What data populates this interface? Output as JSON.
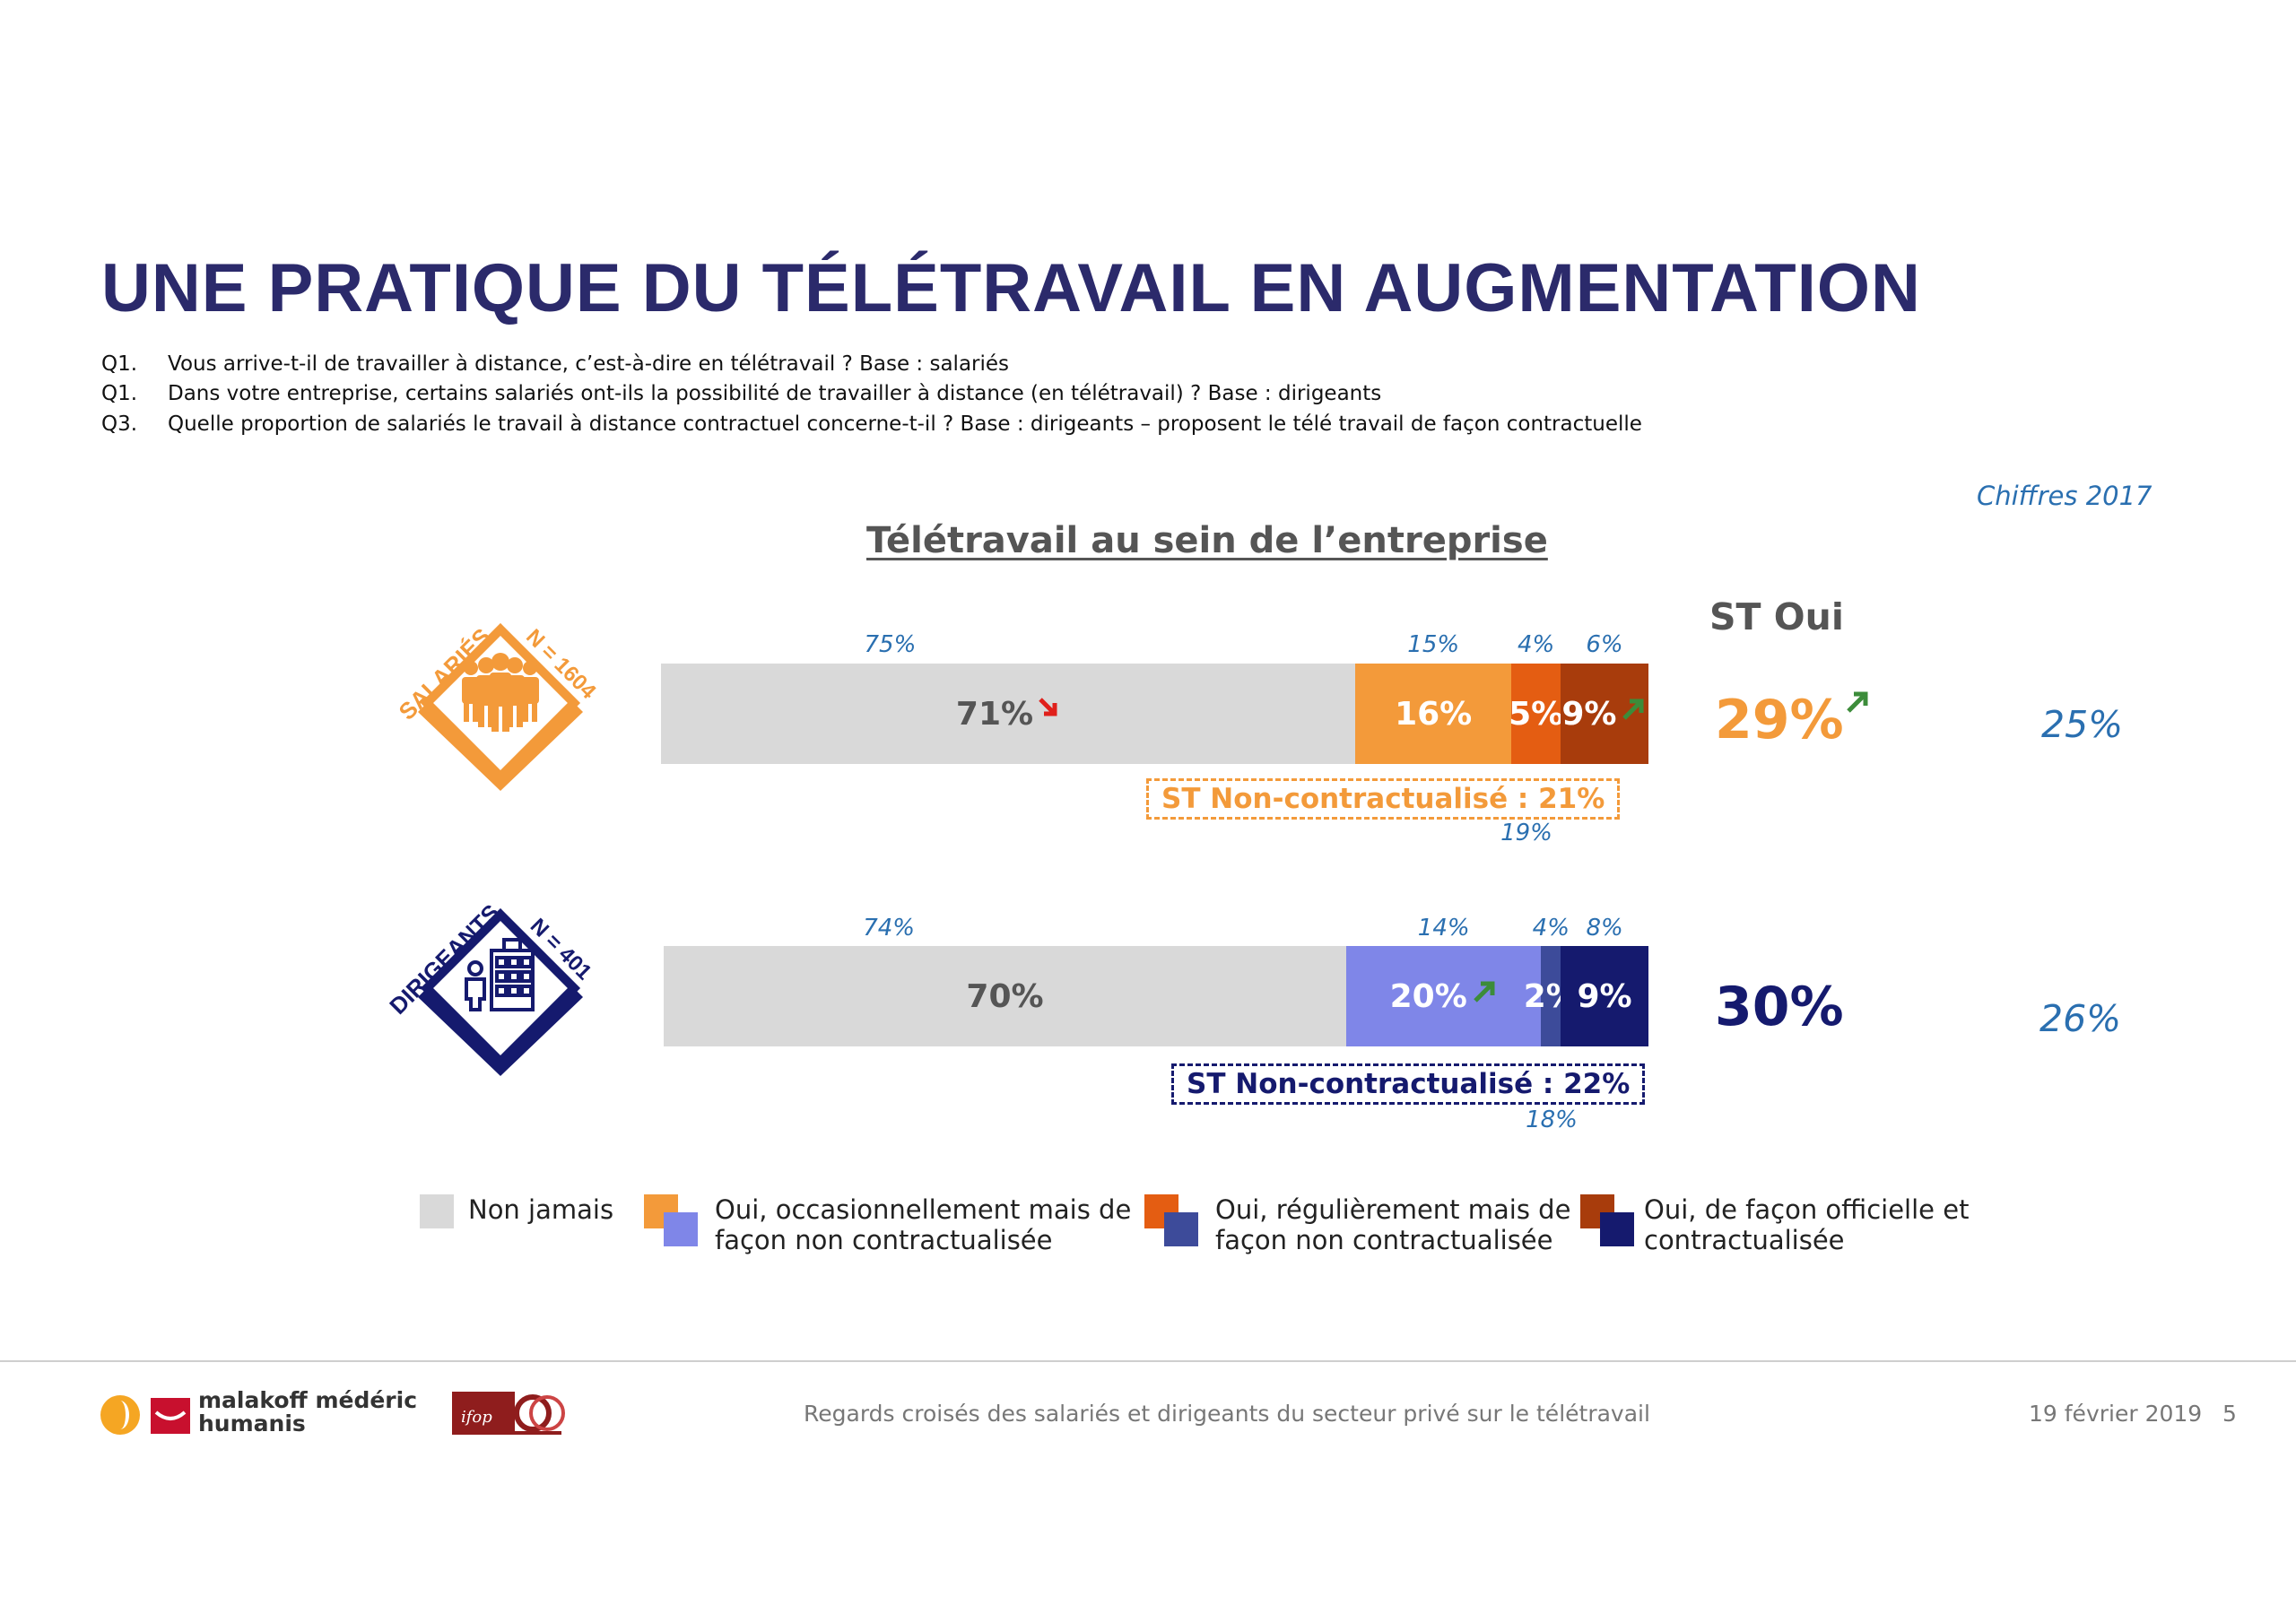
{
  "page": {
    "title": "UNE PRATIQUE DU TÉLÉTRAVAIL EN AUGMENTATION",
    "questions": [
      {
        "num": "Q1.",
        "text": "Vous arrive-t-il de travailler à distance, c’est-à-dire en télétravail ? Base : salariés"
      },
      {
        "num": "Q1.",
        "text": "Dans votre entreprise, certains salariés ont-ils la possibilité de travailler à distance (en télétravail) ? Base : dirigeants"
      },
      {
        "num": "Q3.",
        "text": "Quelle proportion de salariés le travail à distance contractuel concerne-t-il ? Base : dirigeants – proposent le télé travail de façon contractuelle"
      }
    ],
    "year_label": "Chiffres 2017",
    "st_oui_label": "ST Oui"
  },
  "chart_data": {
    "type": "bar",
    "orientation": "horizontal-stacked",
    "title": "Télétravail au sein de l’entreprise",
    "unit": "%",
    "categories": [
      "Non jamais",
      "Oui, occasionnellement mais de façon non contractualisée",
      "Oui, régulièrement mais de façon non contractualisée",
      "Oui, de façon officielle et contractualisée"
    ],
    "groups": [
      {
        "label": "SALARIÉS",
        "n_label": "N = 1604",
        "values": [
          71,
          16,
          5,
          9
        ],
        "value_labels": [
          "71%",
          "16%",
          "5%",
          "9%"
        ],
        "previous_labels": [
          "75%",
          "15%",
          "4%",
          "6%"
        ],
        "colors": [
          "#d9d9d9",
          "#f39a3a",
          "#e45d12",
          "#a83c0c"
        ],
        "trends": [
          "down",
          "",
          "",
          "up"
        ],
        "st_non_contractualise": "ST Non-contractualisé : 21%",
        "st_non_contractualise_previous": "19%",
        "st_oui": "29%",
        "st_oui_trend": "up",
        "st_oui_previous": "25%",
        "accent": "#f39a3a"
      },
      {
        "label": "DIRIGEANTS",
        "n_label": "N = 401",
        "values": [
          70,
          20,
          2,
          9
        ],
        "value_labels": [
          "70%",
          "20%",
          "2%",
          "9%"
        ],
        "previous_labels": [
          "74%",
          "14%",
          "4%",
          "8%"
        ],
        "colors": [
          "#d9d9d9",
          "#7f86e8",
          "#3d4b9a",
          "#151a6e"
        ],
        "trends": [
          "",
          "up",
          "",
          ""
        ],
        "st_non_contractualise": "ST Non-contractualisé : 22%",
        "st_non_contractualise_previous": "18%",
        "st_oui": "30%",
        "st_oui_trend": "",
        "st_oui_previous": "26%",
        "accent": "#151a6e"
      }
    ],
    "legend_placement": "bottom"
  },
  "legend": [
    {
      "label_line1": "Non jamais",
      "label_line2": "",
      "color_a": "#d9d9d9",
      "color_b": ""
    },
    {
      "label_line1": "Oui, occasionnellement mais de",
      "label_line2": "façon non contractualisée",
      "color_a": "#f39a3a",
      "color_b": "#7f86e8"
    },
    {
      "label_line1": "Oui, régulièrement mais de",
      "label_line2": "façon non contractualisée",
      "color_a": "#e45d12",
      "color_b": "#3d4b9a"
    },
    {
      "label_line1": "Oui, de façon officielle et",
      "label_line2": "contractualisée",
      "color_a": "#a83c0c",
      "color_b": "#151a6e"
    }
  ],
  "footer": {
    "logo_line1": "malakoff médéric",
    "logo_line2": "humanis",
    "logo2_text": "ifop",
    "center_text": "Regards croisés des salariés et dirigeants du secteur privé sur le télétravail",
    "date": "19 février 2019",
    "page_number": "5"
  }
}
